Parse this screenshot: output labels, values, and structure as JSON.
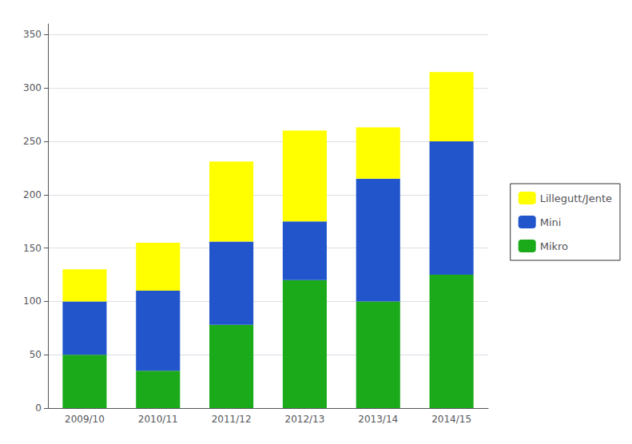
{
  "chart_data": {
    "type": "bar",
    "stacked": true,
    "categories": [
      "2009/10",
      "2010/11",
      "2011/12",
      "2012/13",
      "2013/14",
      "2014/15"
    ],
    "series": [
      {
        "name": "Mikro",
        "color": "#1aaa1a",
        "values": [
          50,
          35,
          78,
          120,
          100,
          125
        ]
      },
      {
        "name": "Mini",
        "color": "#2255cc",
        "values": [
          50,
          75,
          78,
          55,
          115,
          125
        ]
      },
      {
        "name": "Lillegutt/Jente",
        "color": "#ffff00",
        "values": [
          30,
          45,
          75,
          85,
          48,
          65
        ]
      }
    ],
    "ylim": [
      0,
      360
    ],
    "yticks": [
      0,
      50,
      100,
      150,
      200,
      250,
      300,
      350
    ],
    "grid": true,
    "legend": "right"
  }
}
